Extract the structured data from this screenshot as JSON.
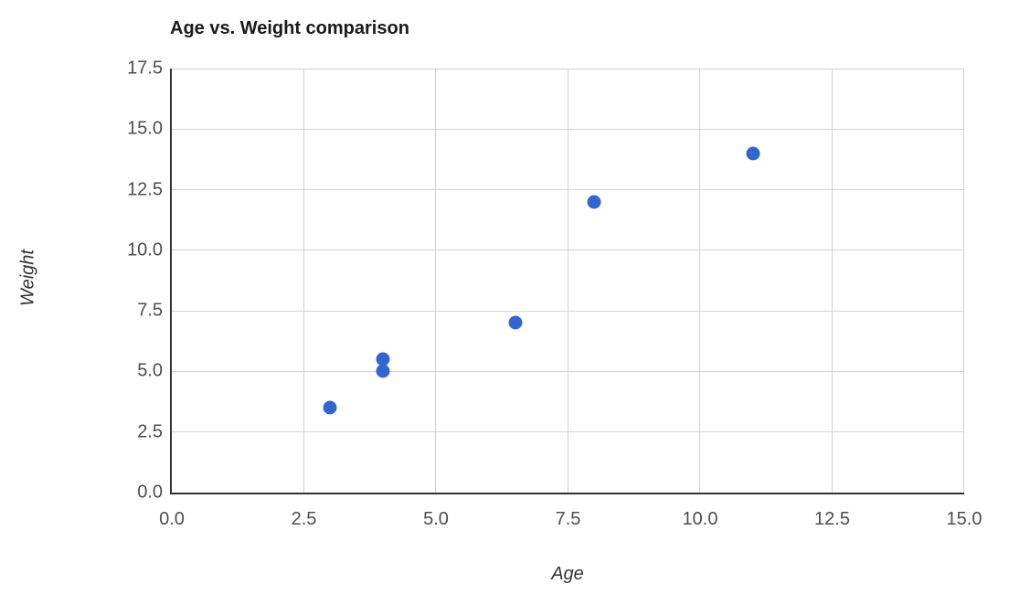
{
  "chart_data": {
    "type": "scatter",
    "title": "Age vs. Weight comparison",
    "xlabel": "Age",
    "ylabel": "Weight",
    "xlim": [
      0.0,
      15.0
    ],
    "ylim": [
      0.0,
      17.5
    ],
    "grid": true,
    "legend": false,
    "xticks": [
      {
        "value": 0.0,
        "label": "0.0"
      },
      {
        "value": 2.5,
        "label": "2.5"
      },
      {
        "value": 5.0,
        "label": "5.0"
      },
      {
        "value": 7.5,
        "label": "7.5"
      },
      {
        "value": 10.0,
        "label": "10.0"
      },
      {
        "value": 12.5,
        "label": "12.5"
      },
      {
        "value": 15.0,
        "label": "15.0"
      }
    ],
    "yticks": [
      {
        "value": 0.0,
        "label": "0.0"
      },
      {
        "value": 2.5,
        "label": "2.5"
      },
      {
        "value": 5.0,
        "label": "5.0"
      },
      {
        "value": 7.5,
        "label": "7.5"
      },
      {
        "value": 10.0,
        "label": "10.0"
      },
      {
        "value": 12.5,
        "label": "12.5"
      },
      {
        "value": 15.0,
        "label": "15.0"
      },
      {
        "value": 17.5,
        "label": "17.5"
      }
    ],
    "series": [
      {
        "name": "age-weight-points",
        "marker": "circle",
        "marker_size_px": 15,
        "color": "#3366cc",
        "points": [
          {
            "x": 3.0,
            "y": 3.5
          },
          {
            "x": 4.0,
            "y": 5.0
          },
          {
            "x": 4.0,
            "y": 5.5
          },
          {
            "x": 6.5,
            "y": 7.0
          },
          {
            "x": 8.0,
            "y": 12.0
          },
          {
            "x": 11.0,
            "y": 14.0
          }
        ]
      }
    ],
    "colors": {
      "point": "#3366cc",
      "grid": "#d2d2d2",
      "axis_spine": "#333333",
      "tick_label": "#4d4d4d",
      "title": "#1a1a1a",
      "axis_label": "#333333",
      "background": "#ffffff"
    }
  }
}
